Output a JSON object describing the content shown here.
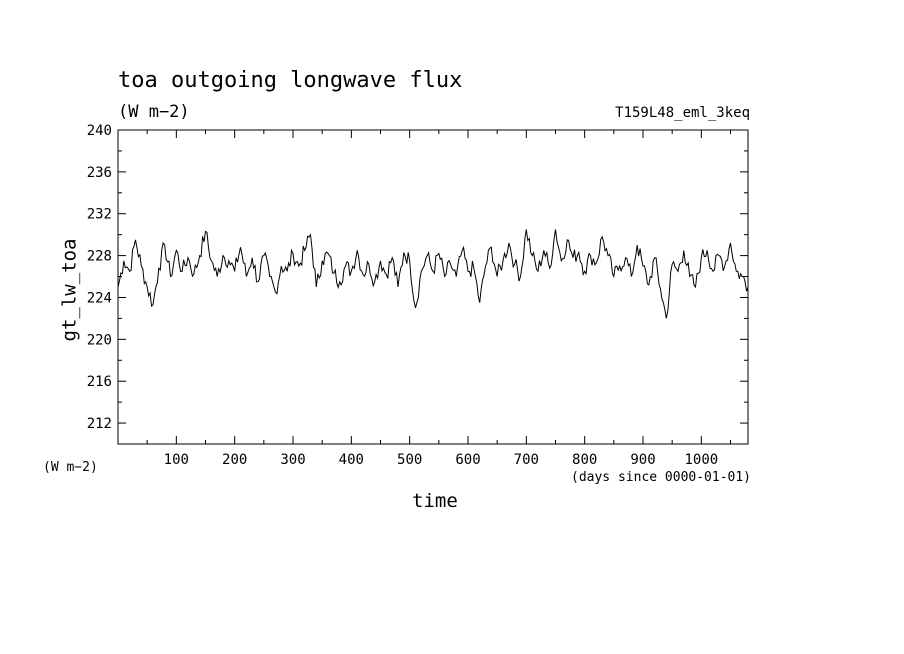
{
  "header": {
    "title": "toa outgoing longwave flux",
    "units": "(W m−2)",
    "run_name": "T159L48_eml_3keq"
  },
  "axes": {
    "y_units_note": "(W m−2)",
    "x_units_note": "(days since 0000-01-01)"
  },
  "chart_data": {
    "type": "line",
    "title": "toa outgoing longwave flux",
    "subtitle": "(W m−2)",
    "xlabel": "time",
    "ylabel": "gt_lw_toa",
    "xlim": [
      0,
      1080
    ],
    "ylim": [
      210,
      240
    ],
    "xticks": [
      100,
      200,
      300,
      400,
      500,
      600,
      700,
      800,
      900,
      1000
    ],
    "yticks": [
      212,
      216,
      220,
      224,
      228,
      232,
      236,
      240
    ],
    "grid": false,
    "line_color": "#000000",
    "series": [
      {
        "x": [
          0,
          10,
          20,
          30,
          40,
          50,
          60,
          70,
          80,
          90,
          100,
          110,
          120,
          130,
          140,
          150,
          160,
          170,
          180,
          190,
          200,
          210,
          220,
          230,
          240,
          250,
          260,
          270,
          280,
          290,
          300,
          310,
          320,
          330,
          340,
          350,
          360,
          370,
          380,
          390,
          400,
          410,
          420,
          430,
          440,
          450,
          460,
          470,
          480,
          490,
          500,
          510,
          520,
          530,
          540,
          550,
          560,
          570,
          580,
          590,
          600,
          610,
          620,
          630,
          640,
          650,
          660,
          670,
          680,
          690,
          700,
          710,
          720,
          730,
          740,
          750,
          760,
          770,
          780,
          790,
          800,
          810,
          820,
          830,
          840,
          850,
          860,
          870,
          880,
          890,
          900,
          910,
          920,
          930,
          940,
          950,
          960,
          970,
          980,
          990,
          1000,
          1010,
          1020,
          1030,
          1040,
          1050,
          1060,
          1070,
          1080
        ],
        "values": [
          225.0,
          227.5,
          226.5,
          229.5,
          227.0,
          225.0,
          223.3,
          226.8,
          229.0,
          226.0,
          228.5,
          226.5,
          227.8,
          226.2,
          228.0,
          230.3,
          227.5,
          226.0,
          228.0,
          227.5,
          226.5,
          228.8,
          226.0,
          227.8,
          225.5,
          228.0,
          226.0,
          224.5,
          227.0,
          226.5,
          228.2,
          227.0,
          228.5,
          230.0,
          225.0,
          227.5,
          228.2,
          226.3,
          225.5,
          227.0,
          226.5,
          228.5,
          226.2,
          227.2,
          225.5,
          227.5,
          226.2,
          227.8,
          225.0,
          228.3,
          227.5,
          223.0,
          226.5,
          228.0,
          226.5,
          228.2,
          226.0,
          227.2,
          226.0,
          228.5,
          226.5,
          226.8,
          223.5,
          227.0,
          228.8,
          226.0,
          227.5,
          229.2,
          227.2,
          226.0,
          230.5,
          228.0,
          226.5,
          228.5,
          226.8,
          230.5,
          227.5,
          229.5,
          227.8,
          228.3,
          226.5,
          228.0,
          227.3,
          229.8,
          228.0,
          226.0,
          227.0,
          227.8,
          226.0,
          229.0,
          227.0,
          225.2,
          227.8,
          224.8,
          222.0,
          227.2,
          226.5,
          228.5,
          226.0,
          225.0,
          227.8,
          228.5,
          226.5,
          228.0,
          227.0,
          229.2,
          226.5,
          226.0,
          225.0
        ]
      }
    ]
  }
}
